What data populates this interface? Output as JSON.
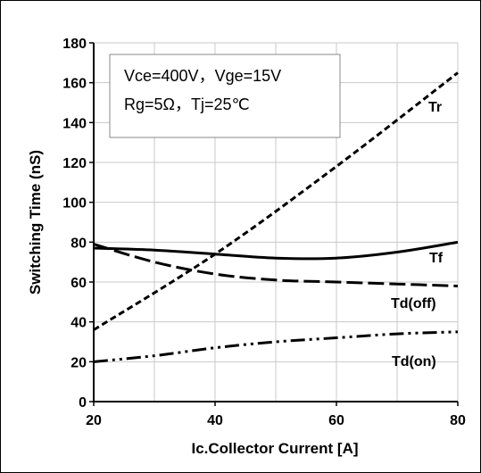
{
  "chart_data": {
    "type": "line",
    "xlabel": "Ic.Collector Current [A]",
    "ylabel": "Switching Time (nS)",
    "xlim": [
      20,
      80
    ],
    "ylim": [
      0,
      180
    ],
    "x_ticks": [
      20,
      40,
      60,
      80
    ],
    "y_ticks": [
      0,
      20,
      40,
      60,
      80,
      100,
      120,
      140,
      160,
      180
    ],
    "grid": true,
    "conditions": [
      "Vce=400V，Vge=15V",
      "Rg=5Ω，Tj=25℃"
    ],
    "series": [
      {
        "name": "Tr",
        "dash": "short",
        "x": [
          20,
          40,
          60,
          80
        ],
        "y": [
          36,
          74,
          118,
          165
        ]
      },
      {
        "name": "Tf",
        "dash": "solid",
        "x": [
          20,
          30,
          40,
          50,
          60,
          70,
          80
        ],
        "y": [
          77,
          76,
          74,
          72,
          72,
          75,
          80
        ]
      },
      {
        "name": "Td(off)",
        "dash": "long",
        "x": [
          20,
          30,
          40,
          50,
          60,
          70,
          80
        ],
        "y": [
          79,
          70,
          64,
          61,
          60,
          59,
          58
        ]
      },
      {
        "name": "Td(on)",
        "dash": "dashdotdot",
        "x": [
          20,
          30,
          40,
          50,
          60,
          70,
          80
        ],
        "y": [
          20,
          23,
          27,
          30,
          32,
          34,
          35
        ]
      }
    ]
  }
}
